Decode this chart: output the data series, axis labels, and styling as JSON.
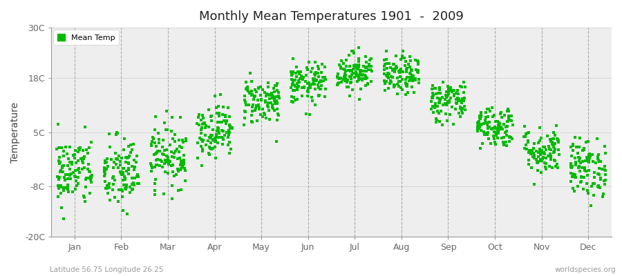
{
  "title": "Monthly Mean Temperatures 1901  -  2009",
  "ylabel": "Temperature",
  "subtitle_left": "Latitude 56.75 Longitude 26.25",
  "subtitle_right": "worldspecies.org",
  "ylim": [
    -20,
    30
  ],
  "yticks": [
    -20,
    -8,
    5,
    18,
    30
  ],
  "ytick_labels": [
    "-20C",
    "-8C",
    "5C",
    "18C",
    "30C"
  ],
  "months": [
    "Jan",
    "Feb",
    "Mar",
    "Apr",
    "May",
    "Jun",
    "Jul",
    "Aug",
    "Sep",
    "Oct",
    "Nov",
    "Dec"
  ],
  "scatter_color": "#00bb00",
  "background_color": "#ffffff",
  "plot_bg_color": "#eeeeee",
  "dot_size": 5,
  "legend_label": "Mean Temp",
  "monthly_means": [
    -4.5,
    -5.0,
    -0.5,
    5.5,
    12.5,
    16.5,
    19.5,
    18.5,
    12.5,
    6.5,
    0.5,
    -3.5
  ],
  "monthly_stds": [
    4.2,
    4.5,
    3.8,
    3.2,
    2.8,
    2.5,
    2.3,
    2.3,
    2.5,
    2.5,
    2.8,
    3.5
  ],
  "n_years": 109
}
